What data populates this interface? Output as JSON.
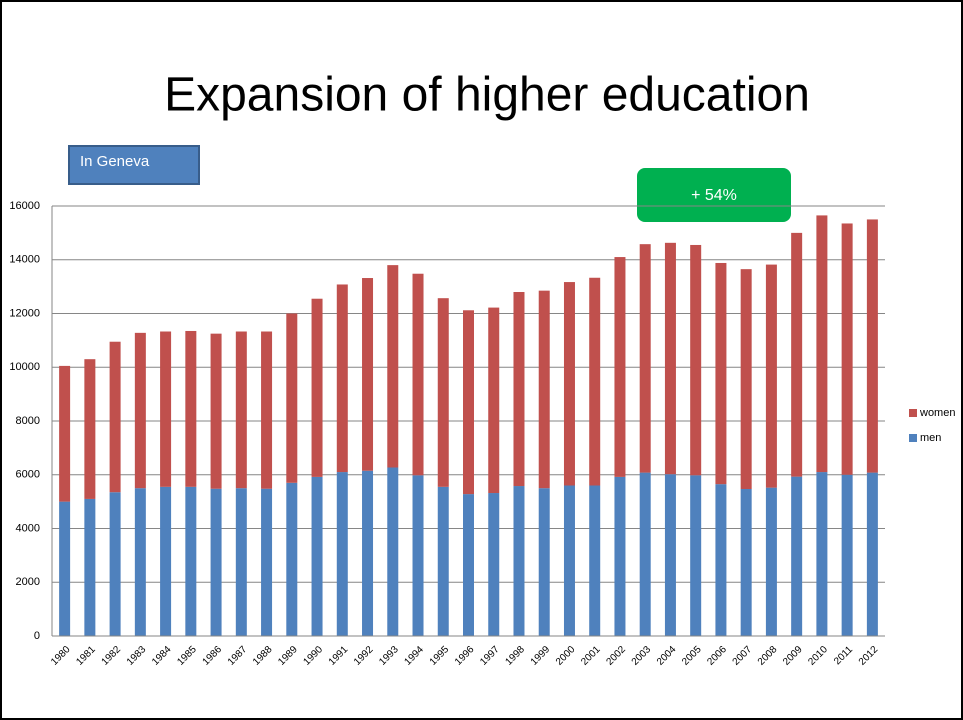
{
  "chart_data": {
    "type": "stacked_bar",
    "title": "Expansion of higher education",
    "annotations": [
      "In Geneva",
      "+ 54%"
    ],
    "categories": [
      "1980",
      "1981",
      "1982",
      "1983",
      "1984",
      "1985",
      "1986",
      "1987",
      "1988",
      "1989",
      "1990",
      "1991",
      "1992",
      "1993",
      "1994",
      "1995",
      "1996",
      "1997",
      "1998",
      "1999",
      "2000",
      "2001",
      "2002",
      "2003",
      "2004",
      "2005",
      "2006",
      "2007",
      "2008",
      "2009",
      "2010",
      "2011",
      "2012"
    ],
    "series": [
      {
        "name": "men",
        "color": "#4f81bd",
        "values": [
          5000,
          5100,
          5350,
          5500,
          5550,
          5550,
          5480,
          5500,
          5480,
          5700,
          5920,
          6100,
          6150,
          6270,
          5980,
          5550,
          5280,
          5320,
          5580,
          5500,
          5600,
          5600,
          5920,
          6080,
          6020,
          5980,
          5650,
          5470,
          5520,
          5930,
          6100,
          6000,
          6080
        ]
      },
      {
        "name": "women",
        "color": "#c0504d",
        "values": [
          5050,
          5200,
          5600,
          5780,
          5780,
          5800,
          5770,
          5830,
          5850,
          6300,
          6630,
          6980,
          7170,
          7530,
          7500,
          7020,
          6840,
          6900,
          7220,
          7350,
          7570,
          7730,
          8180,
          8500,
          8610,
          8570,
          8230,
          8180,
          8300,
          9070,
          9550,
          9350,
          9420
        ]
      }
    ],
    "ylim": [
      0,
      16000
    ],
    "yticks": [
      0,
      2000,
      4000,
      6000,
      8000,
      10000,
      12000,
      14000,
      16000
    ],
    "grid": true,
    "legend": "right"
  }
}
